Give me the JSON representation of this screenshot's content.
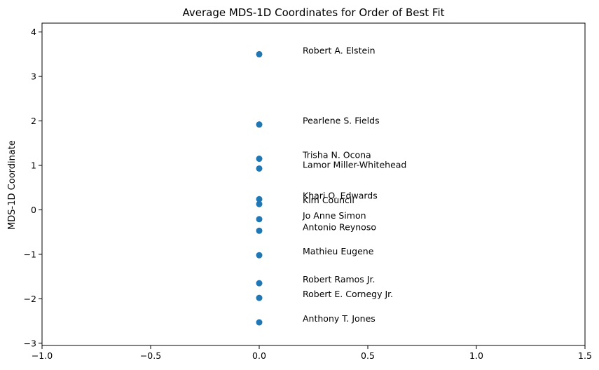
{
  "chart_data": {
    "type": "scatter",
    "title": "Average MDS-1D Coordinates for Order of Best Fit",
    "xlabel": "",
    "ylabel": "MDS-1D Coordinate",
    "xlim": [
      -1.0,
      1.5
    ],
    "ylim": [
      -3.05,
      4.2
    ],
    "xticks": [
      -1.0,
      -0.5,
      0.0,
      0.5,
      1.0,
      1.5
    ],
    "xtick_labels": [
      "−1.0",
      "−0.5",
      "0.0",
      "0.5",
      "1.0",
      "1.5"
    ],
    "yticks": [
      -3,
      -2,
      -1,
      0,
      1,
      2,
      3,
      4
    ],
    "ytick_labels": [
      "−3",
      "−2",
      "−1",
      "0",
      "1",
      "2",
      "3",
      "4"
    ],
    "grid": false,
    "marker_color": "#1f77b4",
    "label_x_offset": 0.2,
    "points": [
      {
        "name": "Robert A. Elstein",
        "x": 0.0,
        "y": 3.5
      },
      {
        "name": "Pearlene S. Fields",
        "x": 0.0,
        "y": 1.92
      },
      {
        "name": "Trisha N. Ocona",
        "x": 0.0,
        "y": 1.15
      },
      {
        "name": "Lamor Miller-Whitehead",
        "x": 0.0,
        "y": 0.93
      },
      {
        "name": "Khari O. Edwards",
        "x": 0.0,
        "y": 0.24
      },
      {
        "name": "Kim Council",
        "x": 0.0,
        "y": 0.13
      },
      {
        "name": "Jo Anne Simon",
        "x": 0.0,
        "y": -0.21
      },
      {
        "name": "Antonio Reynoso",
        "x": 0.0,
        "y": -0.47
      },
      {
        "name": "Mathieu Eugene",
        "x": 0.0,
        "y": -1.02
      },
      {
        "name": "Robert Ramos Jr.",
        "x": 0.0,
        "y": -1.65
      },
      {
        "name": "Robert E. Cornegy Jr.",
        "x": 0.0,
        "y": -1.98
      },
      {
        "name": "Anthony T. Jones",
        "x": 0.0,
        "y": -2.53
      }
    ]
  }
}
